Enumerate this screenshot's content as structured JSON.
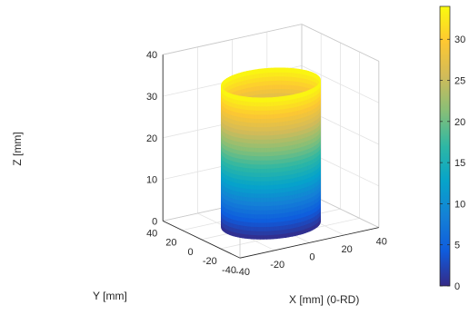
{
  "chart_data": {
    "type": "surface",
    "title": "",
    "xlabel": "X [mm] (0-RD)",
    "ylabel": "Y [mm]",
    "zlabel": "Z [mm]",
    "xlim": [
      -40,
      40
    ],
    "ylim": [
      -40,
      40
    ],
    "zlim": [
      0,
      40
    ],
    "x_ticks": [
      "-40",
      "-20",
      "0",
      "20",
      "40"
    ],
    "y_ticks": [
      "-40",
      "-20",
      "0",
      "20",
      "40"
    ],
    "z_ticks": [
      "0",
      "10",
      "20",
      "30",
      "40"
    ],
    "grid": true,
    "colormap": "parula",
    "color_variable": "Z",
    "colorbar": {
      "range": [
        0,
        34
      ],
      "ticks": [
        "0",
        "5",
        "10",
        "15",
        "20",
        "25",
        "30"
      ],
      "location": "right"
    },
    "surface": {
      "shape": "cylinder",
      "radius": 25,
      "height": 34,
      "center": [
        0,
        0
      ]
    }
  },
  "colors": {
    "parula": [
      "#352a87",
      "#0f5cdd",
      "#1481d6",
      "#06a4ca",
      "#2eb7a4",
      "#87bf77",
      "#d1bb59",
      "#fec832",
      "#f9fb0e"
    ]
  }
}
